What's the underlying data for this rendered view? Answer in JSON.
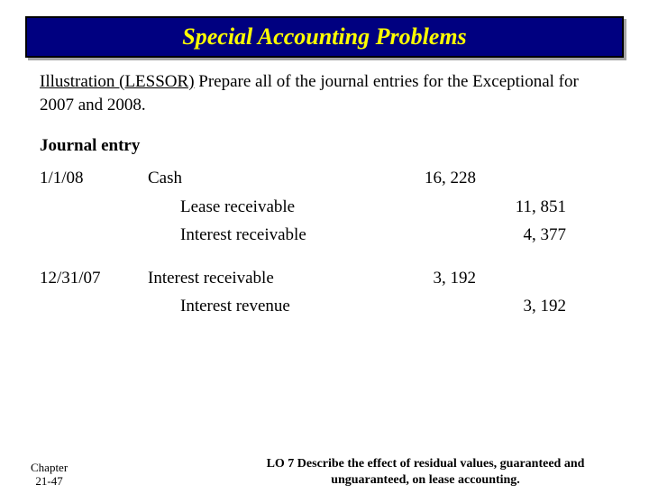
{
  "title": "Special Accounting Problems",
  "colors": {
    "banner_bg": "#000080",
    "banner_text": "#ffff00",
    "page_bg": "#ffffff",
    "text": "#000000"
  },
  "illustration": {
    "label": "Illustration (LESSOR)",
    "rest": " Prepare all of the journal entries for the Exceptional for 2007 and 2008."
  },
  "journal_heading": "Journal entry",
  "entries": [
    {
      "date": "1/1/08",
      "lines": [
        {
          "account": "Cash",
          "indent": false,
          "debit": "16, 228",
          "credit": ""
        },
        {
          "account": "Lease receivable",
          "indent": true,
          "debit": "",
          "credit": "11, 851"
        },
        {
          "account": "Interest receivable",
          "indent": true,
          "debit": "",
          "credit": "4, 377"
        }
      ]
    },
    {
      "date": "12/31/07",
      "lines": [
        {
          "account": "Interest receivable",
          "indent": false,
          "debit": "3, 192",
          "credit": ""
        },
        {
          "account": "Interest revenue",
          "indent": true,
          "debit": "",
          "credit": "3, 192"
        }
      ]
    }
  ],
  "footer": {
    "chapter_line1": "Chapter",
    "chapter_line2": "21-47",
    "lo_text": "LO 7 Describe the effect of residual values, guaranteed and unguaranteed, on lease accounting."
  }
}
